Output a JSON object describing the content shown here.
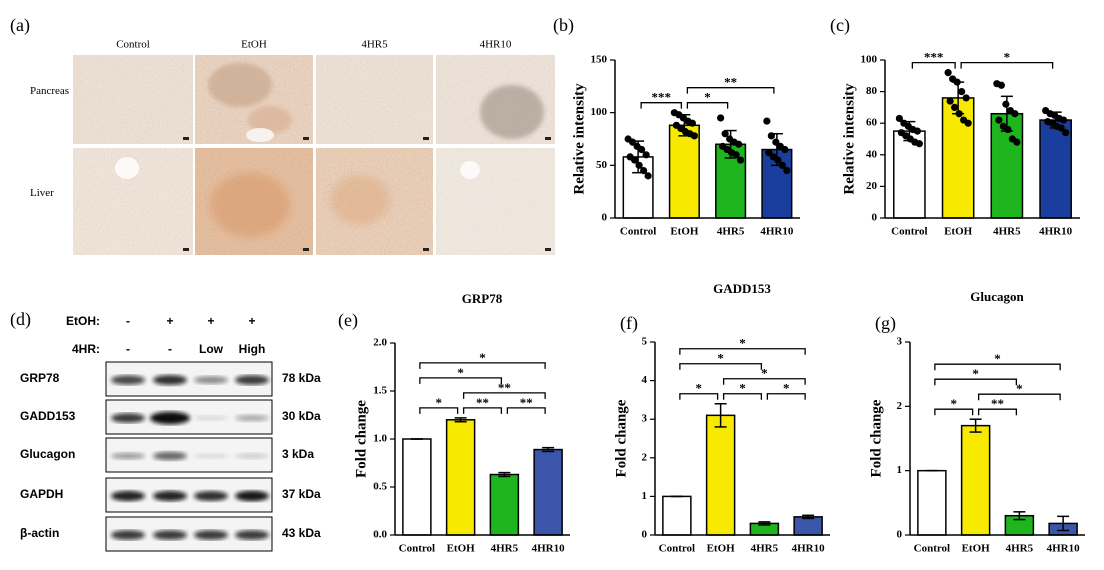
{
  "panel_a": {
    "label": "(a)",
    "columns": [
      "Control",
      "EtOH",
      "4HR5",
      "4HR10"
    ],
    "rows": [
      "Pancreas",
      "Liver"
    ]
  },
  "panel_d": {
    "label": "(d)",
    "treatments": [
      {
        "name": "EtOH:",
        "levels": [
          "-",
          "+",
          "+",
          "+"
        ]
      },
      {
        "name": "4HR:",
        "levels": [
          "-",
          "-",
          "Low",
          "High"
        ]
      }
    ],
    "proteins": [
      {
        "name": "GRP78",
        "size": "78 kDa"
      },
      {
        "name": "GADD153",
        "size": "30 kDa"
      },
      {
        "name": "Glucagon",
        "size": "3 kDa"
      },
      {
        "name": "GAPDH",
        "size": "37 kDa"
      },
      {
        "name": "β-actin",
        "size": "43 kDa"
      }
    ]
  },
  "chart_data": [
    {
      "type": "bar",
      "panel_label": "(b)",
      "ylabel": "Relative intensity",
      "categories": [
        "Control",
        "EtOH",
        "4HR5",
        "4HR10"
      ],
      "values": [
        58,
        88,
        70,
        65
      ],
      "errors": [
        15,
        10,
        13,
        15
      ],
      "points": [
        [
          75,
          72,
          68,
          65,
          60,
          58,
          55,
          50,
          45,
          40
        ],
        [
          100,
          98,
          95,
          92,
          90,
          88,
          85,
          82,
          80,
          78
        ],
        [
          95,
          80,
          75,
          72,
          70,
          68,
          65,
          62,
          60,
          55
        ],
        [
          92,
          78,
          72,
          68,
          65,
          62,
          58,
          55,
          50,
          45
        ]
      ],
      "colors": [
        "#ffffff",
        "#f7ea00",
        "#1fb51f",
        "#1a3e9e"
      ],
      "ylim": [
        0,
        150
      ],
      "yticks": [
        0,
        50,
        100,
        150
      ],
      "brackets": [
        {
          "label": "***",
          "between": [
            "Control",
            "EtOH"
          ]
        },
        {
          "label": "*",
          "between": [
            "EtOH",
            "4HR5"
          ]
        },
        {
          "label": "**",
          "between": [
            "EtOH",
            "4HR10"
          ]
        }
      ]
    },
    {
      "type": "bar",
      "panel_label": "(c)",
      "ylabel": "Relative intensity",
      "categories": [
        "Control",
        "EtOH",
        "4HR5",
        "4HR10"
      ],
      "values": [
        55,
        76,
        66,
        62
      ],
      "errors": [
        6,
        10,
        11,
        5
      ],
      "points": [
        [
          63,
          60,
          58,
          56,
          55,
          54,
          52,
          50,
          48,
          47
        ],
        [
          92,
          88,
          86,
          80,
          76,
          74,
          70,
          66,
          62,
          60
        ],
        [
          85,
          84,
          72,
          68,
          66,
          62,
          58,
          56,
          50,
          48
        ],
        [
          68,
          66,
          65,
          63,
          62,
          61,
          60,
          58,
          57,
          54
        ]
      ],
      "colors": [
        "#ffffff",
        "#f7ea00",
        "#1fb51f",
        "#1a3e9e"
      ],
      "ylim": [
        0,
        100
      ],
      "yticks": [
        0,
        20,
        40,
        60,
        80,
        100
      ],
      "brackets": [
        {
          "label": "***",
          "between": [
            "Control",
            "EtOH"
          ]
        },
        {
          "label": "*",
          "between": [
            "EtOH",
            "4HR10"
          ]
        }
      ]
    },
    {
      "type": "bar",
      "panel_label": "(e)",
      "title": "GRP78",
      "ylabel": "Fold change",
      "categories": [
        "Control",
        "EtOH",
        "4HR5",
        "4HR10"
      ],
      "values": [
        1.0,
        1.2,
        0.63,
        0.89
      ],
      "errors": [
        0,
        0.02,
        0.02,
        0.02
      ],
      "colors": [
        "#ffffff",
        "#f7ea00",
        "#1fb51f",
        "#3a55aa"
      ],
      "ylim": [
        0,
        2.0
      ],
      "yticks": [
        {
          "value": 0,
          "label": "0.0"
        },
        {
          "value": 0.5,
          "label": "0.5"
        },
        {
          "value": 1.0,
          "label": "1.0"
        },
        {
          "value": 1.5,
          "label": "1.5"
        },
        {
          "value": 2.0,
          "label": "2.0"
        }
      ],
      "brackets": [
        {
          "label": "*",
          "between": [
            "Control",
            "EtOH"
          ]
        },
        {
          "label": "**",
          "between": [
            "EtOH",
            "4HR5"
          ]
        },
        {
          "label": "**",
          "between": [
            "EtOH",
            "4HR10"
          ]
        },
        {
          "label": "*",
          "between": [
            "Control",
            "4HR5"
          ]
        },
        {
          "label": "**",
          "between": [
            "4HR5",
            "4HR10"
          ]
        },
        {
          "label": "*",
          "between": [
            "Control",
            "4HR10"
          ]
        }
      ]
    },
    {
      "type": "bar",
      "panel_label": "(f)",
      "title": "GADD153",
      "ylabel": "Fold change",
      "categories": [
        "Control",
        "EtOH",
        "4HR5",
        "4HR10"
      ],
      "values": [
        1.0,
        3.1,
        0.3,
        0.47
      ],
      "errors": [
        0,
        0.3,
        0.04,
        0.04
      ],
      "colors": [
        "#ffffff",
        "#f7ea00",
        "#1fb51f",
        "#3a55aa"
      ],
      "ylim": [
        0,
        5
      ],
      "yticks": [
        0,
        1,
        2,
        3,
        4,
        5
      ],
      "brackets": [
        {
          "label": "*",
          "between": [
            "Control",
            "EtOH"
          ]
        },
        {
          "label": "*",
          "between": [
            "EtOH",
            "4HR5"
          ]
        },
        {
          "label": "*",
          "between": [
            "EtOH",
            "4HR10"
          ]
        },
        {
          "label": "*",
          "between": [
            "Control",
            "4HR5"
          ]
        },
        {
          "label": "*",
          "between": [
            "4HR5",
            "4HR10"
          ]
        },
        {
          "label": "*",
          "between": [
            "Control",
            "4HR10"
          ]
        }
      ]
    },
    {
      "type": "bar",
      "panel_label": "(g)",
      "title": "Glucagon",
      "ylabel": "Fold change",
      "categories": [
        "Control",
        "EtOH",
        "4HR5",
        "4HR10"
      ],
      "values": [
        1.0,
        1.7,
        0.3,
        0.18
      ],
      "errors": [
        0,
        0.1,
        0.06,
        0.11
      ],
      "colors": [
        "#ffffff",
        "#f7ea00",
        "#1fb51f",
        "#3a55aa"
      ],
      "ylim": [
        0,
        3
      ],
      "yticks": [
        0,
        1,
        2,
        3
      ],
      "brackets": [
        {
          "label": "*",
          "between": [
            "Control",
            "EtOH"
          ]
        },
        {
          "label": "**",
          "between": [
            "EtOH",
            "4HR5"
          ]
        },
        {
          "label": "*",
          "between": [
            "EtOH",
            "4HR10"
          ]
        },
        {
          "label": "*",
          "between": [
            "Control",
            "4HR5"
          ]
        },
        {
          "label": "*",
          "between": [
            "Control",
            "4HR10"
          ]
        }
      ]
    }
  ]
}
